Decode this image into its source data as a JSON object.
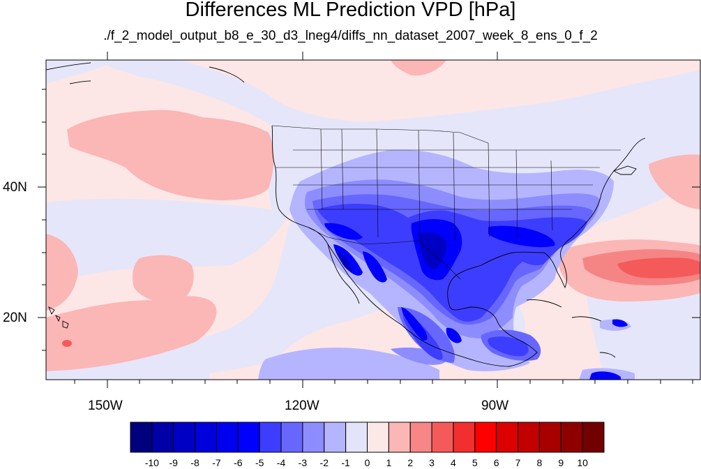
{
  "header": {
    "title": "Differences ML Prediction VPD [hPa]",
    "subtitle": "./f_2_model_output_b8_e_30_d3_lneg4/diffs_nn_dataset_2007_week_8_ens_0_f_2"
  },
  "map": {
    "longitude_ticks": [
      "150W",
      "120W",
      "90W"
    ],
    "latitude_ticks": [
      "40N",
      "20N"
    ],
    "colors": {
      "background_positive": "#fde6e6",
      "background_near_zero": "#e6e6fa",
      "coastline": "#000000"
    }
  },
  "colorbar": {
    "labels": [
      "-10",
      "-9",
      "-8",
      "-7",
      "-6",
      "-5",
      "-4",
      "-3",
      "-2",
      "-1",
      "0",
      "1",
      "2",
      "3",
      "4",
      "5",
      "6",
      "7",
      "8",
      "9",
      "10"
    ],
    "colors": [
      "#00007e",
      "#0000a8",
      "#0000c4",
      "#0000dd",
      "#0000f0",
      "#0000ff",
      "#3d3dff",
      "#6767ff",
      "#8d8dff",
      "#b5b5ff",
      "#e3e3fa",
      "#fde8e8",
      "#fbb6b6",
      "#f78686",
      "#f55a5a",
      "#f32e2e",
      "#ff0000",
      "#dd0000",
      "#c20000",
      "#a80000",
      "#8e0000",
      "#730000"
    ]
  }
}
